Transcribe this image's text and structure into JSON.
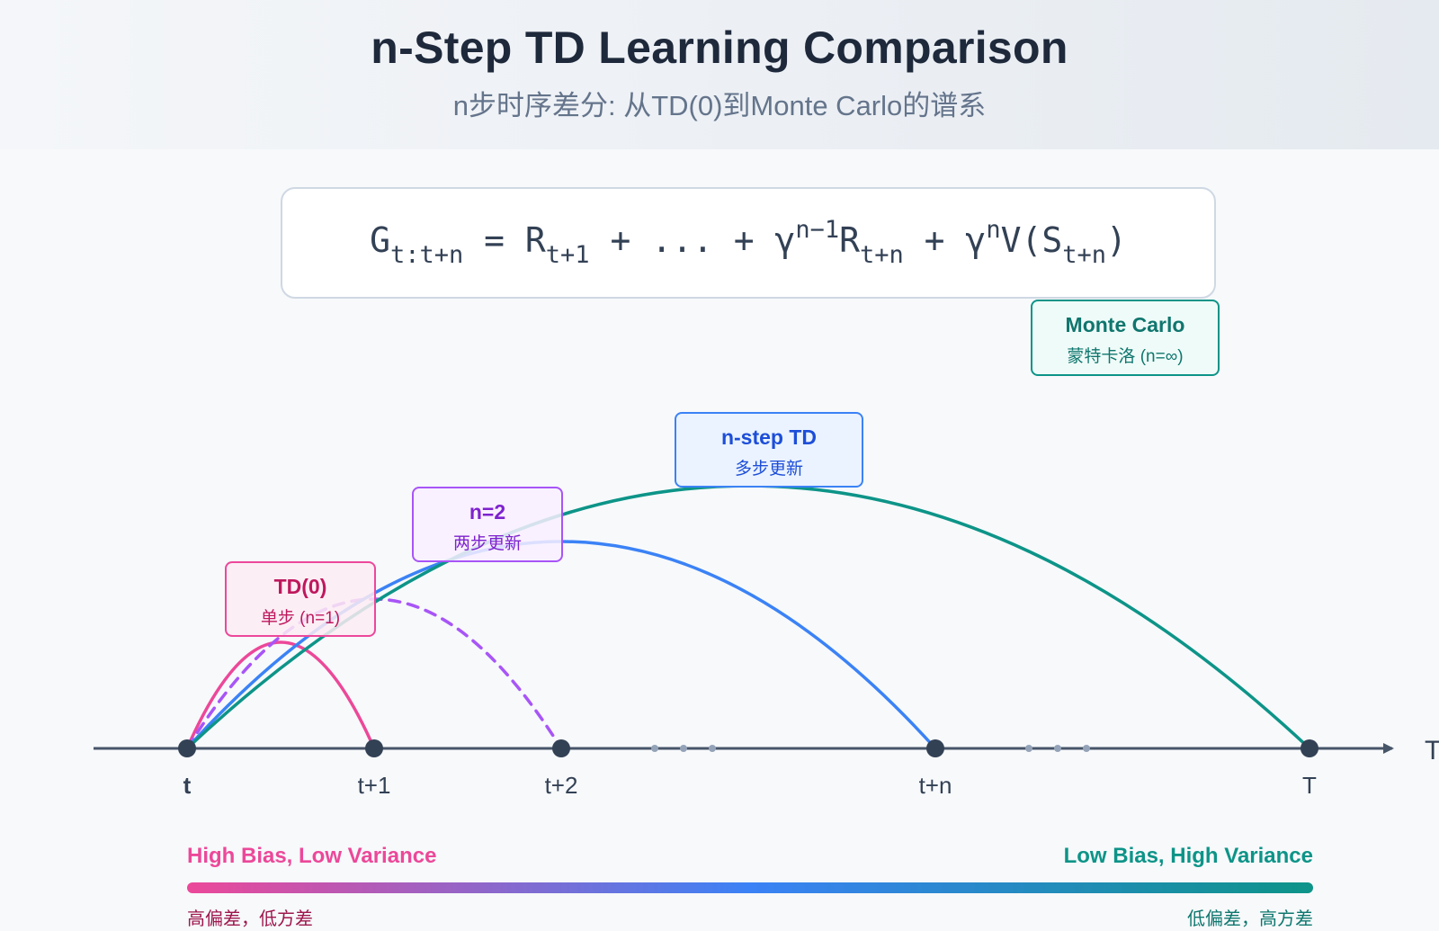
{
  "header": {
    "title": "n-Step TD Learning Comparison",
    "subtitle": "n步时序差分: 从TD(0)到Monte Carlo的谱系"
  },
  "formula": {
    "g": "G",
    "g_sub": "t:t+n",
    "eq": " = R",
    "r1_sub": "t+1",
    "mid": " + ... + γ",
    "gamma_sup": "n−1",
    "rn": "R",
    "rn_sub": "t+n",
    "plus2": " + γ",
    "gamma_n_sup": "n",
    "v": "V(S",
    "v_sub": "t+n",
    "close": ")"
  },
  "methods": {
    "td0": {
      "title": "TD(0)",
      "subtitle": "单步 (n=1)",
      "color": "#ec4899"
    },
    "n2": {
      "title": "n=2",
      "subtitle": "两步更新",
      "color": "#a855f7"
    },
    "nstep": {
      "title": "n-step TD",
      "subtitle": "多步更新",
      "color": "#3b82f6"
    },
    "mc": {
      "title": "Monte Carlo",
      "subtitle": "蒙特卡洛 (n=∞)",
      "color": "#0d9488"
    }
  },
  "timeline": {
    "ticks": [
      "t",
      "t+1",
      "t+2",
      "t+n",
      "T"
    ],
    "axis_end_label": "T",
    "axis_color": "#475569"
  },
  "bias_variance": {
    "left": "High Bias, Low Variance",
    "right": "Low Bias, High Variance",
    "left_cn": "高偏差，低方差",
    "right_cn": "低偏差，高方差",
    "gradient": [
      "#ec4899",
      "#3b82f6",
      "#0d9488"
    ]
  }
}
